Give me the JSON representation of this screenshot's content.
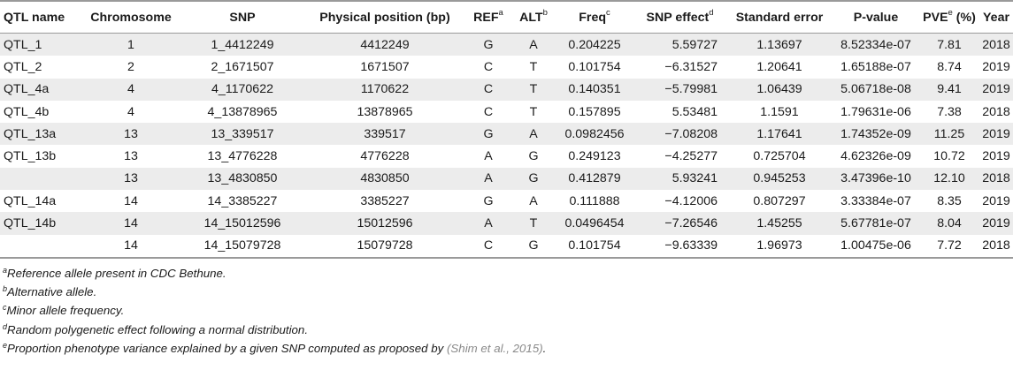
{
  "columns": {
    "qtl": "QTL name",
    "chrom": "Chromosome",
    "snp": "SNP",
    "pos": "Physical position (bp)",
    "ref": "REF",
    "ref_sup": "a",
    "alt": "ALT",
    "alt_sup": "b",
    "freq": "Freq",
    "freq_sup": "c",
    "effect": "SNP effect",
    "effect_sup": "d",
    "se": "Standard error",
    "pval": "P-value",
    "pve": "PVE",
    "pve_sup": "e",
    "pve_unit": " (%)",
    "year": "Year"
  },
  "rows": [
    {
      "qtl": "QTL_1",
      "chrom": "1",
      "snp": "1_4412249",
      "pos": "4412249",
      "ref": "G",
      "alt": "A",
      "freq": "0.204225",
      "effect": "5.59727",
      "se": "1.13697",
      "pval": "8.52334e-07",
      "pve": "7.81",
      "year": "2018"
    },
    {
      "qtl": "QTL_2",
      "chrom": "2",
      "snp": "2_1671507",
      "pos": "1671507",
      "ref": "C",
      "alt": "T",
      "freq": "0.101754",
      "effect": "−6.31527",
      "se": "1.20641",
      "pval": "1.65188e-07",
      "pve": "8.74",
      "year": "2019"
    },
    {
      "qtl": "QTL_4a",
      "chrom": "4",
      "snp": "4_1170622",
      "pos": "1170622",
      "ref": "C",
      "alt": "T",
      "freq": "0.140351",
      "effect": "−5.79981",
      "se": "1.06439",
      "pval": "5.06718e-08",
      "pve": "9.41",
      "year": "2019"
    },
    {
      "qtl": "QTL_4b",
      "chrom": "4",
      "snp": "4_13878965",
      "pos": "13878965",
      "ref": "C",
      "alt": "T",
      "freq": "0.157895",
      "effect": "5.53481",
      "se": "1.1591",
      "pval": "1.79631e-06",
      "pve": "7.38",
      "year": "2018"
    },
    {
      "qtl": "QTL_13a",
      "chrom": "13",
      "snp": "13_339517",
      "pos": "339517",
      "ref": "G",
      "alt": "A",
      "freq": "0.0982456",
      "effect": "−7.08208",
      "se": "1.17641",
      "pval": "1.74352e-09",
      "pve": "11.25",
      "year": "2019"
    },
    {
      "qtl": "QTL_13b",
      "chrom": "13",
      "snp": "13_4776228",
      "pos": "4776228",
      "ref": "A",
      "alt": "G",
      "freq": "0.249123",
      "effect": "−4.25277",
      "se": "0.725704",
      "pval": "4.62326e-09",
      "pve": "10.72",
      "year": "2019"
    },
    {
      "qtl": "",
      "chrom": "13",
      "snp": "13_4830850",
      "pos": "4830850",
      "ref": "A",
      "alt": "G",
      "freq": "0.412879",
      "effect": "5.93241",
      "se": "0.945253",
      "pval": "3.47396e-10",
      "pve": "12.10",
      "year": "2018"
    },
    {
      "qtl": "QTL_14a",
      "chrom": "14",
      "snp": "14_3385227",
      "pos": "3385227",
      "ref": "G",
      "alt": "A",
      "freq": "0.111888",
      "effect": "−4.12006",
      "se": "0.807297",
      "pval": "3.33384e-07",
      "pve": "8.35",
      "year": "2019"
    },
    {
      "qtl": "QTL_14b",
      "chrom": "14",
      "snp": "14_15012596",
      "pos": "15012596",
      "ref": "A",
      "alt": "T",
      "freq": "0.0496454",
      "effect": "−7.26546",
      "se": "1.45255",
      "pval": "5.67781e-07",
      "pve": "8.04",
      "year": "2019"
    },
    {
      "qtl": "",
      "chrom": "14",
      "snp": "14_15079728",
      "pos": "15079728",
      "ref": "C",
      "alt": "G",
      "freq": "0.101754",
      "effect": "−9.63339",
      "se": "1.96973",
      "pval": "1.00475e-06",
      "pve": "7.72",
      "year": "2018"
    }
  ],
  "footnotes": [
    {
      "mark": "a",
      "text": "Reference allele present in CDC Bethune."
    },
    {
      "mark": "b",
      "text": "Alternative allele."
    },
    {
      "mark": "c",
      "text": "Minor allele frequency."
    },
    {
      "mark": "d",
      "text": "Random polygenetic effect following a normal distribution."
    },
    {
      "mark": "e",
      "text": "Proportion phenotype variance explained by a given SNP computed as proposed by ",
      "cite": "(Shim et al., 2015)",
      "tail": "."
    }
  ],
  "colors": {
    "stripe": "#ececec",
    "rule": "#9a9a9a",
    "citation": "#8a8a8a"
  }
}
